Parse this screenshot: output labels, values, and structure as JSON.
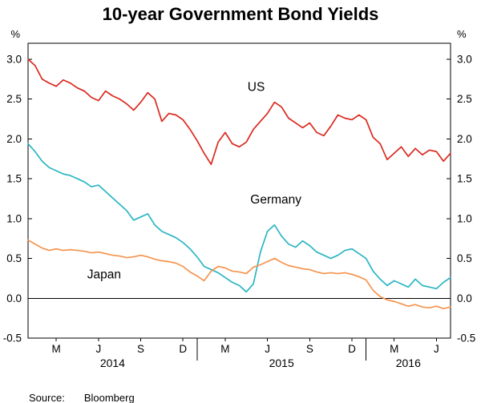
{
  "title": "10-year Government Bond Yields",
  "source": {
    "label": "Source:",
    "value": "Bloomberg"
  },
  "chart_data": {
    "type": "line",
    "title": "10-year Government Bond Yields",
    "ylabel_left": "%",
    "ylabel_right": "%",
    "ylim": [
      -0.5,
      3.2
    ],
    "xlim": [
      0,
      30
    ],
    "grid": false,
    "zero_line": true,
    "x_unit": "months since Jan 2014",
    "yticks": [
      -0.5,
      0.0,
      0.5,
      1.0,
      1.5,
      2.0,
      2.5,
      3.0
    ],
    "ytick_labels": [
      "-0.5",
      "0.0",
      "0.5",
      "1.0",
      "1.5",
      "2.0",
      "2.5",
      "3.0"
    ],
    "xticks": [
      {
        "x": 2,
        "label": "M"
      },
      {
        "x": 5,
        "label": "J"
      },
      {
        "x": 8,
        "label": "S"
      },
      {
        "x": 11,
        "label": "D"
      },
      {
        "x": 14,
        "label": "M"
      },
      {
        "x": 17,
        "label": "J"
      },
      {
        "x": 20,
        "label": "S"
      },
      {
        "x": 23,
        "label": "D"
      },
      {
        "x": 26,
        "label": "M"
      },
      {
        "x": 29,
        "label": "J"
      }
    ],
    "year_labels": [
      {
        "x": 6,
        "label": "2014"
      },
      {
        "x": 18,
        "label": "2015"
      },
      {
        "x": 27,
        "label": "2016"
      }
    ],
    "year_boundaries": [
      12,
      24
    ],
    "x": [
      0,
      0.5,
      1,
      1.5,
      2,
      2.5,
      3,
      3.5,
      4,
      4.5,
      5,
      5.5,
      6,
      6.5,
      7,
      7.5,
      8,
      8.5,
      9,
      9.5,
      10,
      10.5,
      11,
      11.5,
      12,
      12.5,
      13,
      13.5,
      14,
      14.5,
      15,
      15.5,
      16,
      16.5,
      17,
      17.5,
      18,
      18.5,
      19,
      19.5,
      20,
      20.5,
      21,
      21.5,
      22,
      22.5,
      23,
      23.5,
      24,
      24.5,
      25,
      25.5,
      26,
      26.5,
      27,
      27.5,
      28,
      28.5,
      29,
      29.5,
      30
    ],
    "series": [
      {
        "name": "US",
        "color": "#da291f",
        "label_pos": {
          "x": 16.2,
          "y": 2.6
        },
        "values": [
          3.0,
          2.92,
          2.75,
          2.7,
          2.66,
          2.74,
          2.7,
          2.64,
          2.6,
          2.52,
          2.48,
          2.6,
          2.54,
          2.5,
          2.44,
          2.36,
          2.46,
          2.58,
          2.5,
          2.22,
          2.32,
          2.3,
          2.24,
          2.12,
          1.98,
          1.82,
          1.68,
          1.96,
          2.08,
          1.94,
          1.9,
          1.96,
          2.12,
          2.22,
          2.32,
          2.46,
          2.4,
          2.26,
          2.2,
          2.14,
          2.2,
          2.08,
          2.04,
          2.16,
          2.3,
          2.26,
          2.24,
          2.3,
          2.24,
          2.02,
          1.94,
          1.74,
          1.82,
          1.9,
          1.78,
          1.88,
          1.8,
          1.86,
          1.84,
          1.72,
          1.82
        ]
      },
      {
        "name": "Germany",
        "color": "#2bb6c4",
        "label_pos": {
          "x": 17.6,
          "y": 1.19
        },
        "values": [
          1.94,
          1.84,
          1.72,
          1.64,
          1.6,
          1.56,
          1.54,
          1.5,
          1.46,
          1.4,
          1.42,
          1.34,
          1.26,
          1.18,
          1.1,
          0.98,
          1.02,
          1.06,
          0.92,
          0.84,
          0.8,
          0.76,
          0.7,
          0.62,
          0.52,
          0.4,
          0.36,
          0.32,
          0.26,
          0.2,
          0.16,
          0.08,
          0.18,
          0.58,
          0.84,
          0.92,
          0.78,
          0.68,
          0.64,
          0.72,
          0.66,
          0.58,
          0.54,
          0.5,
          0.54,
          0.6,
          0.62,
          0.56,
          0.5,
          0.34,
          0.24,
          0.16,
          0.22,
          0.18,
          0.14,
          0.24,
          0.16,
          0.14,
          0.12,
          0.2,
          0.26
        ]
      },
      {
        "name": "Japan",
        "color": "#f5944d",
        "label_pos": {
          "x": 5.4,
          "y": 0.25
        },
        "values": [
          0.73,
          0.68,
          0.63,
          0.6,
          0.62,
          0.6,
          0.61,
          0.6,
          0.59,
          0.57,
          0.58,
          0.56,
          0.54,
          0.53,
          0.51,
          0.52,
          0.54,
          0.52,
          0.49,
          0.47,
          0.46,
          0.44,
          0.4,
          0.33,
          0.28,
          0.22,
          0.34,
          0.4,
          0.38,
          0.34,
          0.33,
          0.31,
          0.39,
          0.42,
          0.46,
          0.5,
          0.45,
          0.41,
          0.39,
          0.37,
          0.36,
          0.33,
          0.31,
          0.32,
          0.31,
          0.32,
          0.3,
          0.27,
          0.23,
          0.1,
          0.02,
          -0.02,
          -0.04,
          -0.07,
          -0.1,
          -0.08,
          -0.11,
          -0.12,
          -0.1,
          -0.13,
          -0.11
        ]
      }
    ]
  }
}
